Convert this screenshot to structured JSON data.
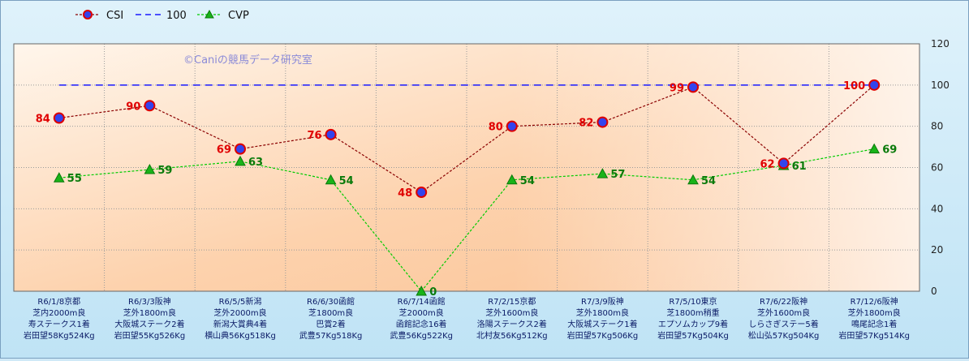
{
  "chart_data": {
    "type": "line",
    "watermark": "©Caniの競馬データ研究室",
    "categories": [
      [
        "R6/1/8京都",
        "芝内2000m良",
        "寿ステークス1着",
        "岩田望58Kg524Kg"
      ],
      [
        "R6/3/3阪神",
        "芝外1800m良",
        "大阪城ステーク2着",
        "岩田望55Kg526Kg"
      ],
      [
        "R6/5/5新潟",
        "芝外2000m良",
        "新潟大賞典4着",
        "横山典56Kg518Kg"
      ],
      [
        "R6/6/30函館",
        "芝1800m良",
        "巴賞2着",
        "武豊57Kg518Kg"
      ],
      [
        "R6/7/14函館",
        "芝2000m良",
        "函館記念16着",
        "武豊56Kg522Kg"
      ],
      [
        "R7/2/15京都",
        "芝外1600m良",
        "洛陽ステークス2着",
        "北村友56Kg512Kg"
      ],
      [
        "R7/3/9阪神",
        "芝外1800m良",
        "大阪城ステーク1着",
        "岩田望57Kg506Kg"
      ],
      [
        "R7/5/10東京",
        "芝1800m稍重",
        "エプソムカップ9着",
        "岩田望57Kg504Kg"
      ],
      [
        "R7/6/22阪神",
        "芝外1600m良",
        "しらさぎステー5着",
        "松山弘57Kg504Kg"
      ],
      [
        "R7/12/6阪神",
        "芝外1800m良",
        "鳴尾記念1着",
        "岩田望57Kg514Kg"
      ]
    ],
    "series": [
      {
        "name": "CSI",
        "values": [
          84,
          90,
          69,
          76,
          48,
          80,
          82,
          99,
          62,
          100
        ],
        "color": "#cc0000"
      },
      {
        "name": "100",
        "values": [
          100,
          100,
          100,
          100,
          100,
          100,
          100,
          100,
          100,
          100
        ],
        "color": "#1a1aff"
      },
      {
        "name": "CVP",
        "values": [
          55,
          59,
          63,
          54,
          0,
          54,
          57,
          54,
          61,
          69
        ],
        "color": "#00cc00"
      }
    ],
    "ylim": [
      0,
      120
    ],
    "yticks": [
      0,
      20,
      40,
      60,
      80,
      100,
      120
    ],
    "legend": "top-left",
    "grid": true
  }
}
